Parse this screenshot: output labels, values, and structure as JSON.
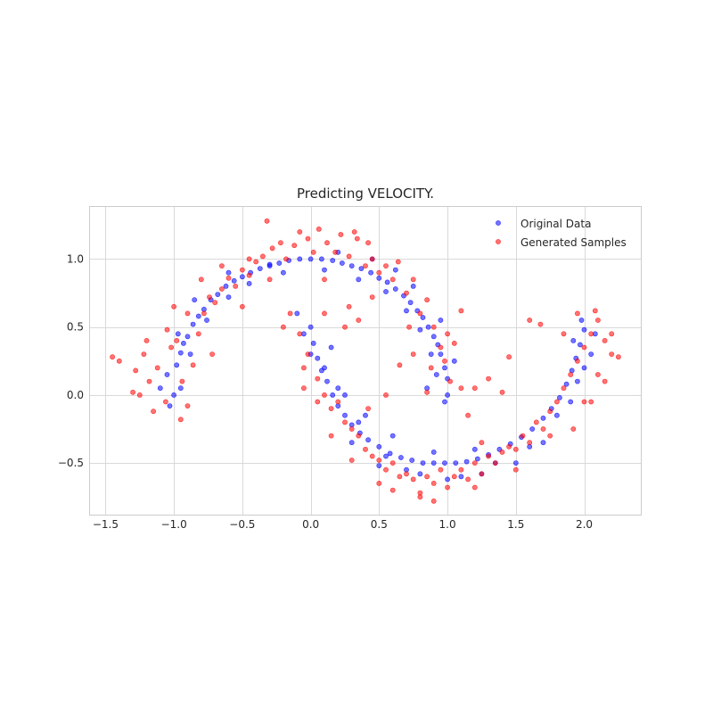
{
  "chart_data": {
    "type": "scatter",
    "title": "Predicting VELOCITY.",
    "xlabel": "",
    "ylabel": "",
    "xlim": [
      -1.62,
      2.42
    ],
    "ylim": [
      -0.88,
      1.39
    ],
    "xticks": [
      -1.5,
      -1.0,
      -0.5,
      0.0,
      0.5,
      1.0,
      1.5,
      2.0
    ],
    "xtick_labels": [
      "−1.5",
      "−1.0",
      "−0.5",
      "0.0",
      "0.5",
      "1.0",
      "1.5",
      "2.0"
    ],
    "yticks": [
      -0.5,
      0.0,
      0.5,
      1.0
    ],
    "ytick_labels": [
      "−0.5",
      "0.0",
      "0.5",
      "1.0"
    ],
    "grid": true,
    "legend_position": "top-right",
    "series": [
      {
        "name": "Original Data",
        "color": "#0000ff",
        "opacity": 0.55,
        "points": [
          [
            -1.0,
            0.0
          ],
          [
            -0.98,
            0.22
          ],
          [
            -0.95,
            0.31
          ],
          [
            -0.93,
            0.38
          ],
          [
            -0.9,
            0.43
          ],
          [
            -0.86,
            0.52
          ],
          [
            -0.82,
            0.58
          ],
          [
            -0.78,
            0.63
          ],
          [
            -0.73,
            0.7
          ],
          [
            -0.68,
            0.74
          ],
          [
            -0.62,
            0.8
          ],
          [
            -0.56,
            0.84
          ],
          [
            -0.5,
            0.87
          ],
          [
            -0.44,
            0.9
          ],
          [
            -0.37,
            0.93
          ],
          [
            -0.3,
            0.96
          ],
          [
            -0.23,
            0.97
          ],
          [
            -0.16,
            0.99
          ],
          [
            -0.08,
            1.0
          ],
          [
            0.0,
            1.0
          ],
          [
            0.08,
            1.0
          ],
          [
            0.16,
            0.99
          ],
          [
            0.23,
            0.97
          ],
          [
            0.3,
            0.95
          ],
          [
            0.37,
            0.93
          ],
          [
            0.44,
            0.9
          ],
          [
            0.5,
            0.86
          ],
          [
            0.56,
            0.83
          ],
          [
            0.62,
            0.78
          ],
          [
            0.68,
            0.73
          ],
          [
            0.73,
            0.68
          ],
          [
            0.78,
            0.62
          ],
          [
            0.82,
            0.57
          ],
          [
            0.86,
            0.5
          ],
          [
            0.9,
            0.43
          ],
          [
            0.93,
            0.37
          ],
          [
            0.95,
            0.3
          ],
          [
            0.98,
            0.2
          ],
          [
            1.0,
            0.0
          ],
          [
            1.0,
            0.12
          ],
          [
            -1.05,
            0.15
          ],
          [
            -1.1,
            0.05
          ],
          [
            -0.95,
            0.05
          ],
          [
            -1.03,
            -0.08
          ],
          [
            -0.88,
            0.3
          ],
          [
            -0.76,
            0.55
          ],
          [
            -0.6,
            0.72
          ],
          [
            -0.45,
            0.82
          ],
          [
            -0.2,
            0.9
          ],
          [
            0.1,
            0.92
          ],
          [
            0.35,
            0.85
          ],
          [
            0.55,
            0.76
          ],
          [
            0.7,
            0.62
          ],
          [
            0.8,
            0.48
          ],
          [
            0.88,
            0.3
          ],
          [
            0.92,
            0.15
          ],
          [
            0.85,
            0.05
          ],
          [
            0.0,
            0.5
          ],
          [
            0.02,
            0.38
          ],
          [
            0.05,
            0.27
          ],
          [
            0.08,
            0.18
          ],
          [
            0.12,
            0.1
          ],
          [
            0.16,
            0.0
          ],
          [
            0.2,
            -0.08
          ],
          [
            0.25,
            -0.15
          ],
          [
            0.3,
            -0.22
          ],
          [
            0.36,
            -0.28
          ],
          [
            0.42,
            -0.33
          ],
          [
            0.5,
            -0.38
          ],
          [
            0.58,
            -0.43
          ],
          [
            0.66,
            -0.46
          ],
          [
            0.74,
            -0.48
          ],
          [
            0.82,
            -0.5
          ],
          [
            0.9,
            -0.5
          ],
          [
            0.98,
            -0.5
          ],
          [
            1.06,
            -0.5
          ],
          [
            1.14,
            -0.49
          ],
          [
            1.22,
            -0.47
          ],
          [
            1.3,
            -0.44
          ],
          [
            1.38,
            -0.4
          ],
          [
            1.46,
            -0.36
          ],
          [
            1.54,
            -0.31
          ],
          [
            1.62,
            -0.25
          ],
          [
            1.7,
            -0.17
          ],
          [
            1.76,
            -0.1
          ],
          [
            1.82,
            -0.02
          ],
          [
            1.87,
            0.08
          ],
          [
            1.91,
            0.18
          ],
          [
            1.94,
            0.27
          ],
          [
            1.97,
            0.37
          ],
          [
            2.0,
            0.48
          ],
          [
            -0.05,
            0.45
          ],
          [
            0.0,
            0.3
          ],
          [
            0.1,
            0.2
          ],
          [
            0.2,
            0.05
          ],
          [
            0.35,
            -0.2
          ],
          [
            0.55,
            -0.45
          ],
          [
            0.8,
            -0.58
          ],
          [
            1.1,
            -0.6
          ],
          [
            1.35,
            -0.5
          ],
          [
            1.6,
            -0.38
          ],
          [
            1.8,
            -0.15
          ],
          [
            1.95,
            0.1
          ],
          [
            2.05,
            0.3
          ],
          [
            2.0,
            0.2
          ],
          [
            1.9,
            -0.05
          ],
          [
            0.9,
            -0.42
          ],
          [
            1.2,
            -0.4
          ],
          [
            0.6,
            -0.3
          ],
          [
            0.4,
            -0.15
          ],
          [
            0.25,
            0.0
          ],
          [
            -0.1,
            0.6
          ],
          [
            0.15,
            0.35
          ],
          [
            -0.3,
            0.95
          ],
          [
            -0.6,
            0.9
          ],
          [
            -0.85,
            0.7
          ],
          [
            -0.97,
            0.45
          ],
          [
            0.62,
            0.92
          ],
          [
            0.45,
            1.0
          ],
          [
            0.2,
            1.05
          ],
          [
            0.75,
            0.8
          ],
          [
            0.95,
            0.55
          ],
          [
            1.05,
            0.25
          ],
          [
            0.98,
            -0.05
          ],
          [
            1.5,
            -0.5
          ],
          [
            1.7,
            -0.35
          ],
          [
            1.98,
            0.55
          ],
          [
            2.08,
            0.45
          ],
          [
            1.92,
            0.4
          ],
          [
            0.3,
            -0.35
          ],
          [
            0.5,
            -0.52
          ],
          [
            0.7,
            -0.55
          ],
          [
            1.0,
            -0.62
          ],
          [
            1.25,
            -0.58
          ]
        ]
      },
      {
        "name": "Generated Samples",
        "color": "#ff0000",
        "opacity": 0.55,
        "points": [
          [
            -1.45,
            0.28
          ],
          [
            -1.4,
            0.25
          ],
          [
            -1.3,
            0.02
          ],
          [
            -1.28,
            0.18
          ],
          [
            -1.22,
            0.3
          ],
          [
            -1.18,
            0.1
          ],
          [
            -1.12,
            0.2
          ],
          [
            -1.06,
            -0.05
          ],
          [
            -1.02,
            0.35
          ],
          [
            -0.98,
            0.4
          ],
          [
            -0.94,
            0.1
          ],
          [
            -0.9,
            -0.08
          ],
          [
            -0.86,
            0.22
          ],
          [
            -0.82,
            0.45
          ],
          [
            -0.78,
            0.6
          ],
          [
            -0.74,
            0.72
          ],
          [
            -0.7,
            0.68
          ],
          [
            -0.65,
            0.78
          ],
          [
            -0.6,
            0.86
          ],
          [
            -0.55,
            0.8
          ],
          [
            -0.5,
            0.92
          ],
          [
            -0.45,
            0.88
          ],
          [
            -0.4,
            0.98
          ],
          [
            -0.35,
            1.02
          ],
          [
            -0.32,
            1.28
          ],
          [
            -0.28,
            1.08
          ],
          [
            -0.22,
            1.12
          ],
          [
            -0.18,
            1.0
          ],
          [
            -0.12,
            1.1
          ],
          [
            -0.08,
            1.2
          ],
          [
            -0.02,
            1.15
          ],
          [
            0.02,
            1.05
          ],
          [
            0.06,
            1.22
          ],
          [
            0.12,
            1.12
          ],
          [
            0.18,
            1.05
          ],
          [
            0.22,
            1.18
          ],
          [
            0.28,
            1.02
          ],
          [
            0.34,
            1.15
          ],
          [
            0.4,
            0.95
          ],
          [
            0.45,
            1.0
          ],
          [
            0.5,
            0.9
          ],
          [
            0.55,
            0.95
          ],
          [
            0.6,
            0.85
          ],
          [
            0.64,
            0.98
          ],
          [
            0.7,
            0.75
          ],
          [
            0.75,
            0.85
          ],
          [
            0.8,
            0.6
          ],
          [
            0.85,
            0.7
          ],
          [
            0.9,
            0.5
          ],
          [
            0.95,
            0.35
          ],
          [
            0.98,
            0.25
          ],
          [
            1.02,
            0.1
          ],
          [
            1.05,
            0.38
          ],
          [
            1.1,
            0.62
          ],
          [
            1.2,
            0.05
          ],
          [
            -0.15,
            0.6
          ],
          [
            -0.08,
            0.45
          ],
          [
            -0.02,
            0.3
          ],
          [
            0.05,
            0.12
          ],
          [
            0.1,
            0.0
          ],
          [
            0.15,
            -0.1
          ],
          [
            0.2,
            -0.05
          ],
          [
            0.25,
            -0.2
          ],
          [
            0.3,
            -0.25
          ],
          [
            0.35,
            -0.3
          ],
          [
            0.4,
            -0.4
          ],
          [
            0.45,
            -0.45
          ],
          [
            0.5,
            -0.48
          ],
          [
            0.55,
            -0.55
          ],
          [
            0.6,
            -0.5
          ],
          [
            0.65,
            -0.6
          ],
          [
            0.7,
            -0.58
          ],
          [
            0.75,
            -0.62
          ],
          [
            0.8,
            -0.72
          ],
          [
            0.85,
            -0.6
          ],
          [
            0.9,
            -0.65
          ],
          [
            0.95,
            -0.55
          ],
          [
            1.0,
            -0.68
          ],
          [
            1.05,
            -0.6
          ],
          [
            1.1,
            -0.55
          ],
          [
            1.15,
            -0.62
          ],
          [
            1.2,
            -0.5
          ],
          [
            1.25,
            -0.58
          ],
          [
            1.3,
            -0.45
          ],
          [
            1.35,
            -0.5
          ],
          [
            1.4,
            -0.42
          ],
          [
            1.45,
            -0.38
          ],
          [
            1.5,
            -0.4
          ],
          [
            1.55,
            -0.3
          ],
          [
            1.6,
            -0.35
          ],
          [
            1.65,
            -0.2
          ],
          [
            1.7,
            -0.25
          ],
          [
            1.75,
            -0.12
          ],
          [
            1.8,
            -0.05
          ],
          [
            1.85,
            0.05
          ],
          [
            1.9,
            0.15
          ],
          [
            1.95,
            0.25
          ],
          [
            2.0,
            0.35
          ],
          [
            2.05,
            0.45
          ],
          [
            2.1,
            0.55
          ],
          [
            2.15,
            0.4
          ],
          [
            2.2,
            0.3
          ],
          [
            2.25,
            0.28
          ],
          [
            2.1,
            0.15
          ],
          [
            2.0,
            -0.05
          ],
          [
            1.92,
            -0.25
          ],
          [
            1.68,
            0.52
          ],
          [
            1.6,
            0.55
          ],
          [
            1.45,
            0.28
          ],
          [
            1.3,
            0.12
          ],
          [
            0.65,
            0.22
          ],
          [
            0.55,
            0.0
          ],
          [
            0.42,
            -0.1
          ],
          [
            0.75,
            0.3
          ],
          [
            -0.05,
            0.2
          ],
          [
            -0.2,
            0.5
          ],
          [
            0.1,
            0.6
          ],
          [
            0.28,
            0.65
          ],
          [
            1.15,
            -0.15
          ],
          [
            1.4,
            0.02
          ],
          [
            0.35,
            0.55
          ],
          [
            0.8,
            -0.75
          ],
          [
            0.6,
            -0.7
          ],
          [
            1.25,
            -0.35
          ],
          [
            -0.9,
            0.6
          ],
          [
            -1.05,
            0.48
          ],
          [
            -0.72,
            0.3
          ],
          [
            -1.15,
            -0.12
          ],
          [
            -0.95,
            -0.18
          ],
          [
            -0.5,
            0.65
          ],
          [
            -0.3,
            0.85
          ],
          [
            0.1,
            0.85
          ],
          [
            0.45,
            0.72
          ],
          [
            0.72,
            0.5
          ],
          [
            0.88,
            0.2
          ],
          [
            1.95,
            0.6
          ],
          [
            2.08,
            0.62
          ],
          [
            1.85,
            0.45
          ],
          [
            2.2,
            0.45
          ],
          [
            2.15,
            0.1
          ],
          [
            2.05,
            -0.05
          ],
          [
            1.75,
            -0.3
          ],
          [
            1.5,
            -0.55
          ],
          [
            1.2,
            -0.68
          ],
          [
            0.9,
            -0.78
          ],
          [
            0.5,
            -0.65
          ],
          [
            0.3,
            -0.48
          ],
          [
            0.15,
            -0.3
          ],
          [
            0.05,
            -0.05
          ],
          [
            -0.05,
            0.05
          ],
          [
            0.32,
            1.2
          ],
          [
            0.42,
            1.12
          ],
          [
            -0.45,
            1.0
          ],
          [
            -0.65,
            0.95
          ],
          [
            -0.8,
            0.85
          ],
          [
            -1.0,
            0.65
          ],
          [
            -1.2,
            0.4
          ],
          [
            -1.25,
            0.0
          ],
          [
            0.25,
            0.5
          ],
          [
            0.85,
            0.02
          ],
          [
            1.1,
            0.05
          ],
          [
            1.0,
            0.45
          ]
        ]
      }
    ]
  }
}
